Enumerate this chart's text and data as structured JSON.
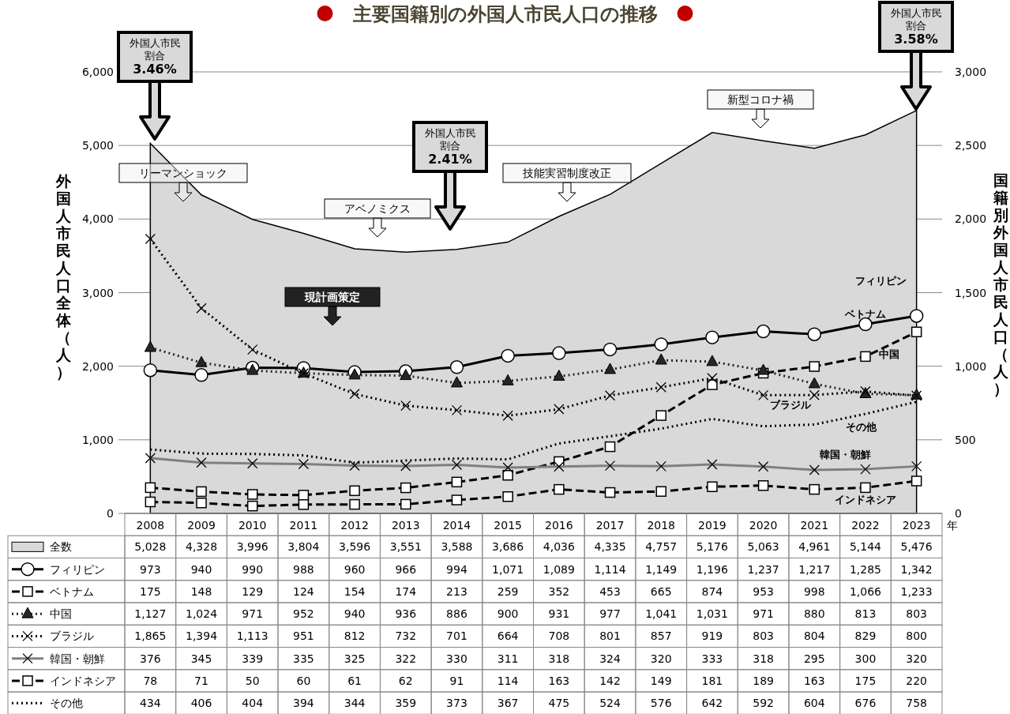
{
  "chart_data": {
    "type": "line",
    "title": "主要国籍別の外国人市民人口の推移",
    "xlabel": "年",
    "ylabel": "外国人市民人口全体（人）",
    "y2label": "国籍別外国人市民人口（人）",
    "categories": [
      "2008",
      "2009",
      "2010",
      "2011",
      "2012",
      "2013",
      "2014",
      "2015",
      "2016",
      "2017",
      "2018",
      "2019",
      "2020",
      "2021",
      "2022",
      "2023"
    ],
    "ylim": [
      0,
      6000
    ],
    "yticks": [
      0,
      {
        "value": 1000,
        "label": "1,000"
      },
      {
        "value": 2000,
        "label": "2,000"
      },
      {
        "value": 3000,
        "label": "3,000"
      },
      {
        "value": 4000,
        "label": "4,000"
      },
      {
        "value": 5000,
        "label": "5,000"
      },
      {
        "value": 6000,
        "label": "6,000"
      }
    ],
    "y2lim": [
      0,
      3000
    ],
    "y2ticks": [
      0,
      500,
      {
        "value": 1000,
        "label": "1,000"
      },
      {
        "value": 1500,
        "label": "1,500"
      },
      {
        "value": 2000,
        "label": "2,000"
      },
      {
        "value": 2500,
        "label": "2,500"
      },
      {
        "value": 3000,
        "label": "3,000"
      }
    ],
    "grid": "y",
    "legend": "bottom",
    "series": [
      {
        "name": "全数",
        "type": "area",
        "color": "#d9d9d9",
        "values": [
          5028,
          4328,
          3996,
          3804,
          3596,
          3551,
          3588,
          3686,
          4036,
          4335,
          4757,
          5176,
          5063,
          4961,
          5144,
          5476
        ],
        "value_labels": [
          "5,028",
          "4,328",
          "3,996",
          "3,804",
          "3,596",
          "3,551",
          "3,588",
          "3,686",
          "4,036",
          "4,335",
          "4,757",
          "5,176",
          "5,063",
          "4,961",
          "5,144",
          "5,476"
        ]
      },
      {
        "name": "フィリピン",
        "axis": "y2",
        "color": "#000000",
        "marker": "circle",
        "line_style": "solid",
        "values": [
          973,
          940,
          990,
          988,
          960,
          966,
          994,
          1071,
          1089,
          1114,
          1149,
          1196,
          1237,
          1217,
          1285,
          1342
        ],
        "value_labels": [
          "973",
          "940",
          "990",
          "988",
          "960",
          "966",
          "994",
          "1,071",
          "1,089",
          "1,114",
          "1,149",
          "1,196",
          "1,237",
          "1,217",
          "1,285",
          "1,342"
        ]
      },
      {
        "name": "ベトナム",
        "axis": "y2",
        "color": "#000000",
        "marker": "square",
        "line_style": "dashed",
        "values": [
          175,
          148,
          129,
          124,
          154,
          174,
          213,
          259,
          352,
          453,
          665,
          874,
          953,
          998,
          1066,
          1233
        ],
        "value_labels": [
          "175",
          "148",
          "129",
          "124",
          "154",
          "174",
          "213",
          "259",
          "352",
          "453",
          "665",
          "874",
          "953",
          "998",
          "1,066",
          "1,233"
        ]
      },
      {
        "name": "中国",
        "axis": "y2",
        "color": "#262626",
        "marker": "triangle",
        "line_style": "dotted",
        "values": [
          1127,
          1024,
          971,
          952,
          940,
          936,
          886,
          900,
          931,
          977,
          1041,
          1031,
          971,
          880,
          813,
          803
        ],
        "value_labels": [
          "1,127",
          "1,024",
          "971",
          "952",
          "940",
          "936",
          "886",
          "900",
          "931",
          "977",
          "1,041",
          "1,031",
          "971",
          "880",
          "813",
          "803"
        ]
      },
      {
        "name": "ブラジル",
        "axis": "y2",
        "color": "#000000",
        "marker": "cross",
        "line_style": "dotted",
        "values": [
          1865,
          1394,
          1113,
          951,
          812,
          732,
          701,
          664,
          708,
          801,
          857,
          919,
          803,
          804,
          829,
          800
        ],
        "value_labels": [
          "1,865",
          "1,394",
          "1,113",
          "951",
          "812",
          "732",
          "701",
          "664",
          "708",
          "801",
          "857",
          "919",
          "803",
          "804",
          "829",
          "800"
        ]
      },
      {
        "name": "韓国・朝鮮",
        "axis": "y2",
        "color": "#808080",
        "marker": "cross",
        "line_style": "solid",
        "values": [
          376,
          345,
          339,
          335,
          325,
          322,
          330,
          311,
          318,
          324,
          320,
          333,
          318,
          295,
          300,
          320
        ],
        "value_labels": [
          "376",
          "345",
          "339",
          "335",
          "325",
          "322",
          "330",
          "311",
          "318",
          "324",
          "320",
          "333",
          "318",
          "295",
          "300",
          "320"
        ]
      },
      {
        "name": "インドネシア",
        "axis": "y2",
        "color": "#000000",
        "marker": "square",
        "line_style": "dashed",
        "values": [
          78,
          71,
          50,
          60,
          61,
          62,
          91,
          114,
          163,
          142,
          149,
          181,
          189,
          163,
          175,
          220
        ],
        "value_labels": [
          "78",
          "71",
          "50",
          "60",
          "61",
          "62",
          "91",
          "114",
          "163",
          "142",
          "149",
          "181",
          "189",
          "163",
          "175",
          "220"
        ]
      },
      {
        "name": "その他",
        "axis": "y2",
        "color": "#000000",
        "marker": "none",
        "line_style": "dotted",
        "values": [
          434,
          406,
          404,
          394,
          344,
          359,
          373,
          367,
          475,
          524,
          576,
          642,
          592,
          604,
          676,
          758
        ],
        "value_labels": [
          "434",
          "406",
          "404",
          "394",
          "344",
          "359",
          "373",
          "367",
          "475",
          "524",
          "576",
          "642",
          "592",
          "604",
          "676",
          "758"
        ]
      }
    ],
    "annotations": [
      "リーマンショック",
      "アベノミクス",
      "技能実習制度改正",
      "新型コロナ禍",
      "現計画策定",
      "外国人市民割合3.46%",
      "外国人市民割合2.41%",
      "外国人市民割合3.58%"
    ]
  }
}
